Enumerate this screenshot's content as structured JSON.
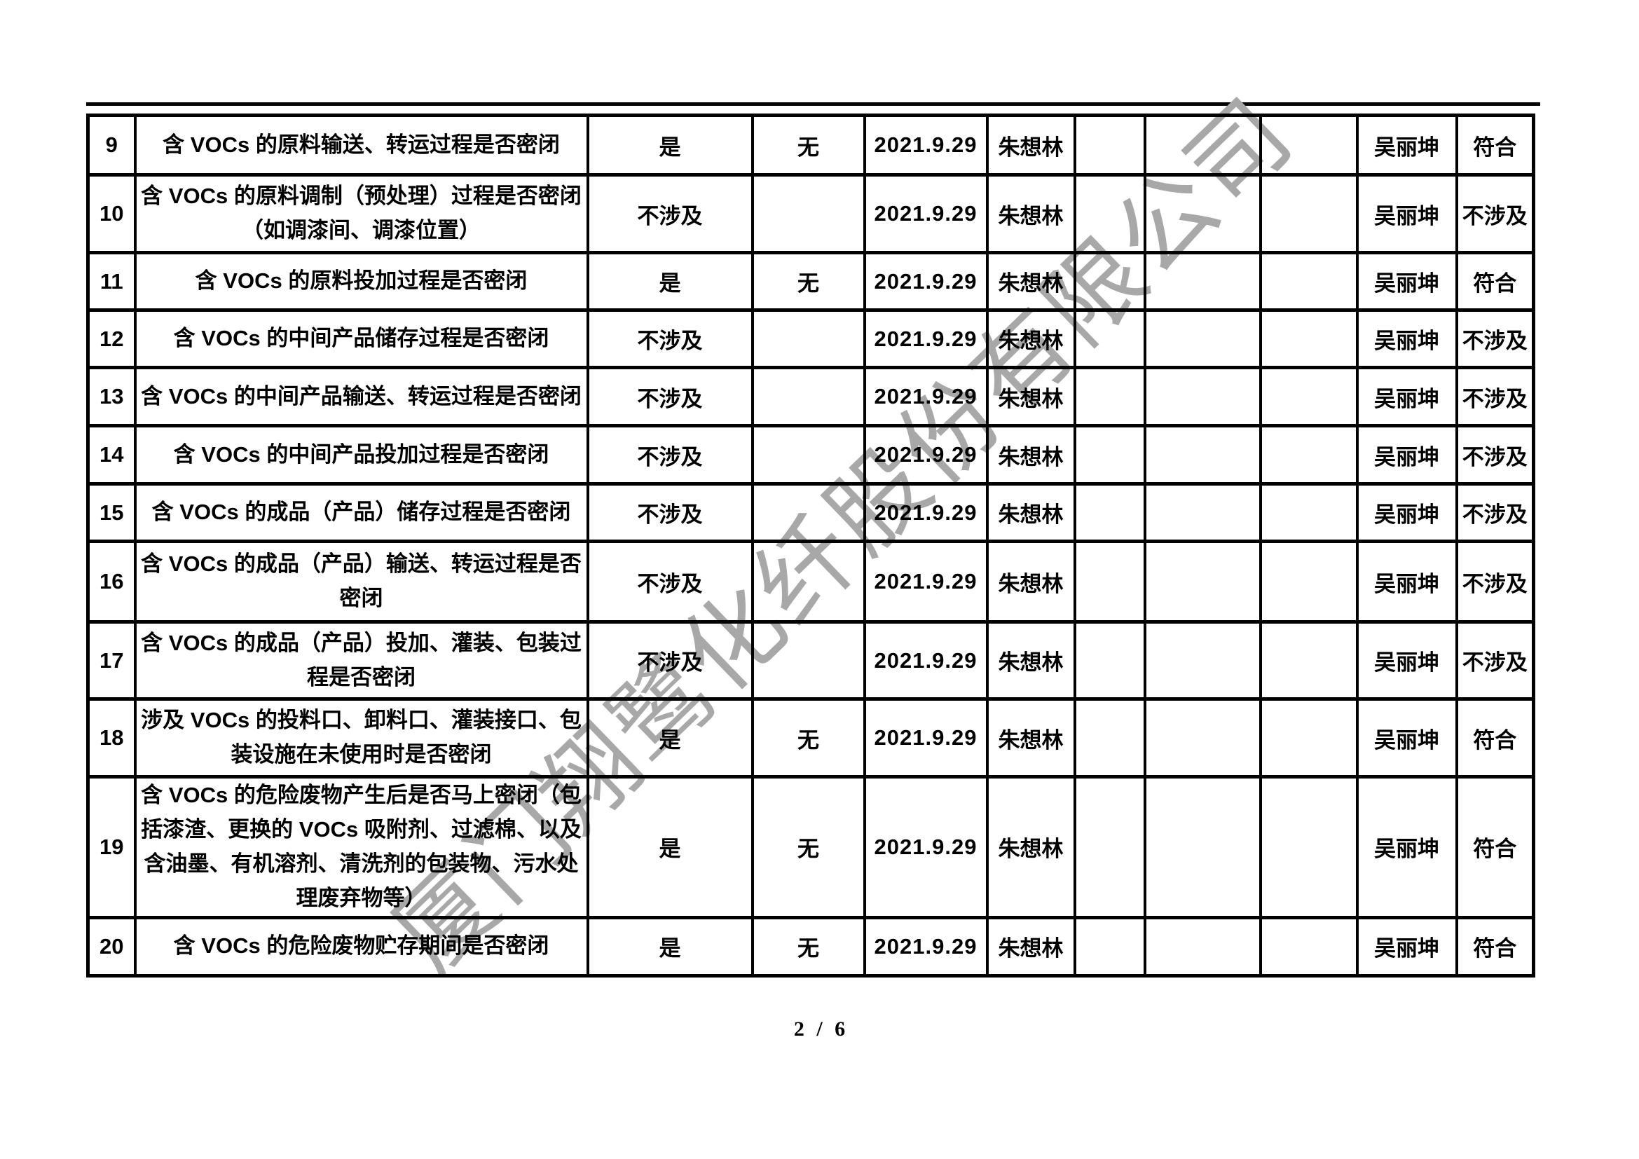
{
  "page": {
    "number": "2 / 6"
  },
  "watermark": {
    "text": "厦门翔鹭化纤股份有限公司",
    "color": "#a8a8a8"
  },
  "table": {
    "rows": [
      {
        "no": "9",
        "item": "含 VOCs 的原料输送、转运过程是否密闭",
        "answer": "是",
        "problem": "无",
        "date": "2021.9.29",
        "inspector": "朱想林",
        "c7": "",
        "c8": "",
        "c9": "",
        "reviewer": "吴丽坤",
        "conclusion": "符合"
      },
      {
        "no": "10",
        "item": "含 VOCs 的原料调制（预处理）过程是否密闭（如调漆间、调漆位置）",
        "answer": "不涉及",
        "problem": "",
        "date": "2021.9.29",
        "inspector": "朱想林",
        "c7": "",
        "c8": "",
        "c9": "",
        "reviewer": "吴丽坤",
        "conclusion": "不涉及"
      },
      {
        "no": "11",
        "item": "含 VOCs 的原料投加过程是否密闭",
        "answer": "是",
        "problem": "无",
        "date": "2021.9.29",
        "inspector": "朱想林",
        "c7": "",
        "c8": "",
        "c9": "",
        "reviewer": "吴丽坤",
        "conclusion": "符合"
      },
      {
        "no": "12",
        "item": "含 VOCs 的中间产品储存过程是否密闭",
        "answer": "不涉及",
        "problem": "",
        "date": "2021.9.29",
        "inspector": "朱想林",
        "c7": "",
        "c8": "",
        "c9": "",
        "reviewer": "吴丽坤",
        "conclusion": "不涉及"
      },
      {
        "no": "13",
        "item": "含 VOCs 的中间产品输送、转运过程是否密闭",
        "answer": "不涉及",
        "problem": "",
        "date": "2021.9.29",
        "inspector": "朱想林",
        "c7": "",
        "c8": "",
        "c9": "",
        "reviewer": "吴丽坤",
        "conclusion": "不涉及"
      },
      {
        "no": "14",
        "item": "含 VOCs 的中间产品投加过程是否密闭",
        "answer": "不涉及",
        "problem": "",
        "date": "2021.9.29",
        "inspector": "朱想林",
        "c7": "",
        "c8": "",
        "c9": "",
        "reviewer": "吴丽坤",
        "conclusion": "不涉及"
      },
      {
        "no": "15",
        "item": "含 VOCs 的成品（产品）储存过程是否密闭",
        "answer": "不涉及",
        "problem": "",
        "date": "2021.9.29",
        "inspector": "朱想林",
        "c7": "",
        "c8": "",
        "c9": "",
        "reviewer": "吴丽坤",
        "conclusion": "不涉及"
      },
      {
        "no": "16",
        "item": "含 VOCs 的成品（产品）输送、转运过程是否密闭",
        "answer": "不涉及",
        "problem": "",
        "date": "2021.9.29",
        "inspector": "朱想林",
        "c7": "",
        "c8": "",
        "c9": "",
        "reviewer": "吴丽坤",
        "conclusion": "不涉及"
      },
      {
        "no": "17",
        "item": "含 VOCs 的成品（产品）投加、灌装、包装过程是否密闭",
        "answer": "不涉及",
        "problem": "",
        "date": "2021.9.29",
        "inspector": "朱想林",
        "c7": "",
        "c8": "",
        "c9": "",
        "reviewer": "吴丽坤",
        "conclusion": "不涉及"
      },
      {
        "no": "18",
        "item": "涉及 VOCs 的投料口、卸料口、灌装接口、包装设施在未使用时是否密闭",
        "answer": "是",
        "problem": "无",
        "date": "2021.9.29",
        "inspector": "朱想林",
        "c7": "",
        "c8": "",
        "c9": "",
        "reviewer": "吴丽坤",
        "conclusion": "符合"
      },
      {
        "no": "19",
        "item": "含 VOCs 的危险废物产生后是否马上密闭（包括漆渣、更换的 VOCs 吸附剂、过滤棉、以及含油墨、有机溶剂、清洗剂的包装物、污水处理废弃物等）",
        "answer": "是",
        "problem": "无",
        "date": "2021.9.29",
        "inspector": "朱想林",
        "c7": "",
        "c8": "",
        "c9": "",
        "reviewer": "吴丽坤",
        "conclusion": "符合"
      },
      {
        "no": "20",
        "item": "含 VOCs 的危险废物贮存期间是否密闭",
        "answer": "是",
        "problem": "无",
        "date": "2021.9.29",
        "inspector": "朱想林",
        "c7": "",
        "c8": "",
        "c9": "",
        "reviewer": "吴丽坤",
        "conclusion": "符合"
      }
    ]
  }
}
